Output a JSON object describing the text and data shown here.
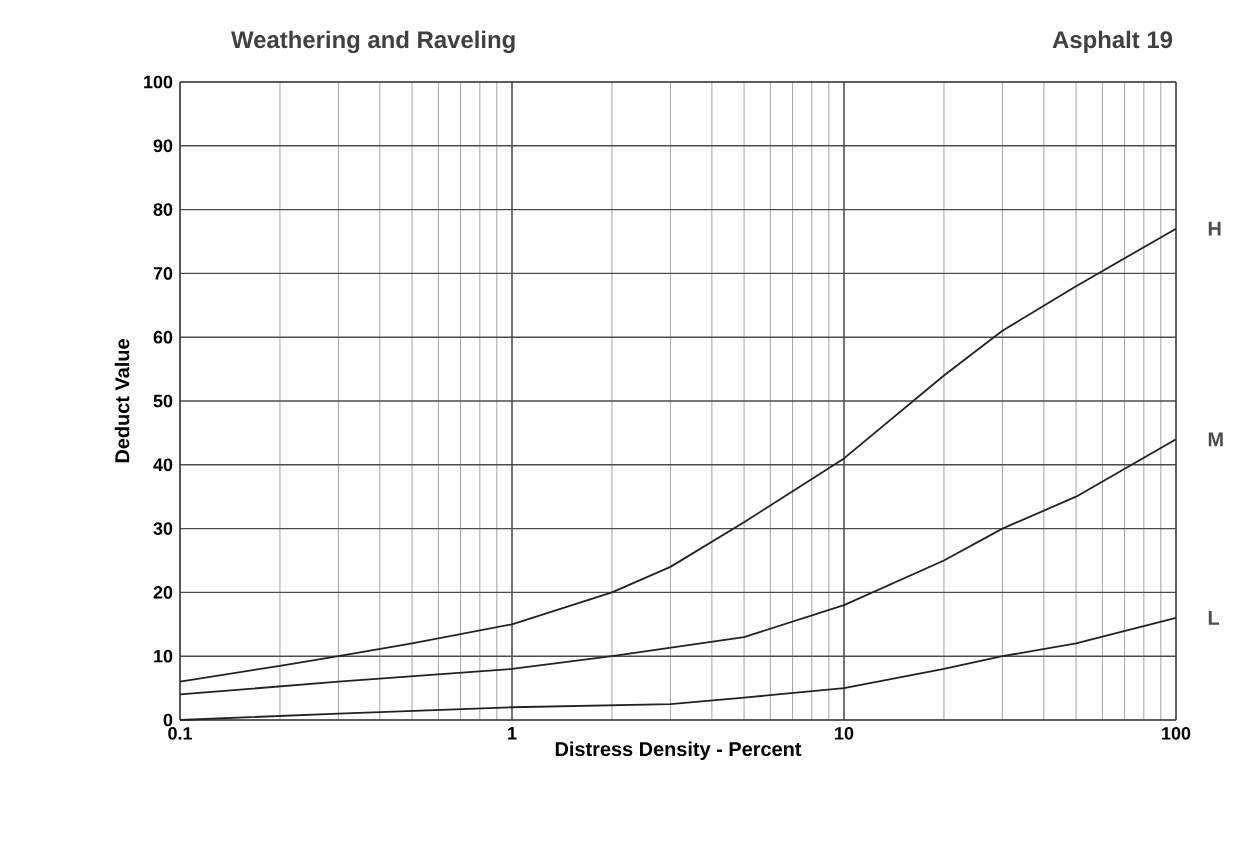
{
  "chart_data": {
    "type": "line",
    "title": "Weathering and Raveling",
    "subtitle": "Asphalt 19",
    "xlabel": "Distress Density - Percent",
    "ylabel": "Deduct Value",
    "log": "x",
    "grid": true,
    "xlim": [
      0.1,
      100
    ],
    "xticks": [
      0.1,
      1,
      10,
      100
    ],
    "ylim": [
      0,
      100
    ],
    "yticks": [
      0,
      10,
      20,
      30,
      40,
      50,
      60,
      70,
      80,
      90,
      100
    ],
    "series": [
      {
        "name": "H",
        "color": "#222222",
        "x": [
          0.1,
          0.2,
          0.3,
          0.5,
          1,
          2,
          3,
          5,
          10,
          20,
          30,
          50,
          100
        ],
        "values": [
          6,
          8.5,
          10,
          12,
          15,
          20,
          24,
          31,
          41,
          54,
          61,
          68,
          77
        ]
      },
      {
        "name": "M",
        "color": "#222222",
        "x": [
          0.1,
          0.3,
          1,
          2,
          5,
          10,
          20,
          30,
          50,
          100
        ],
        "values": [
          4,
          6,
          8,
          10,
          13,
          18,
          25,
          30,
          35,
          44
        ]
      },
      {
        "name": "L",
        "color": "#222222",
        "x": [
          0.1,
          0.3,
          1,
          3,
          5,
          10,
          20,
          30,
          50,
          100
        ],
        "values": [
          0,
          1,
          2,
          2.5,
          3.5,
          5,
          8,
          10,
          12,
          16
        ]
      }
    ]
  }
}
